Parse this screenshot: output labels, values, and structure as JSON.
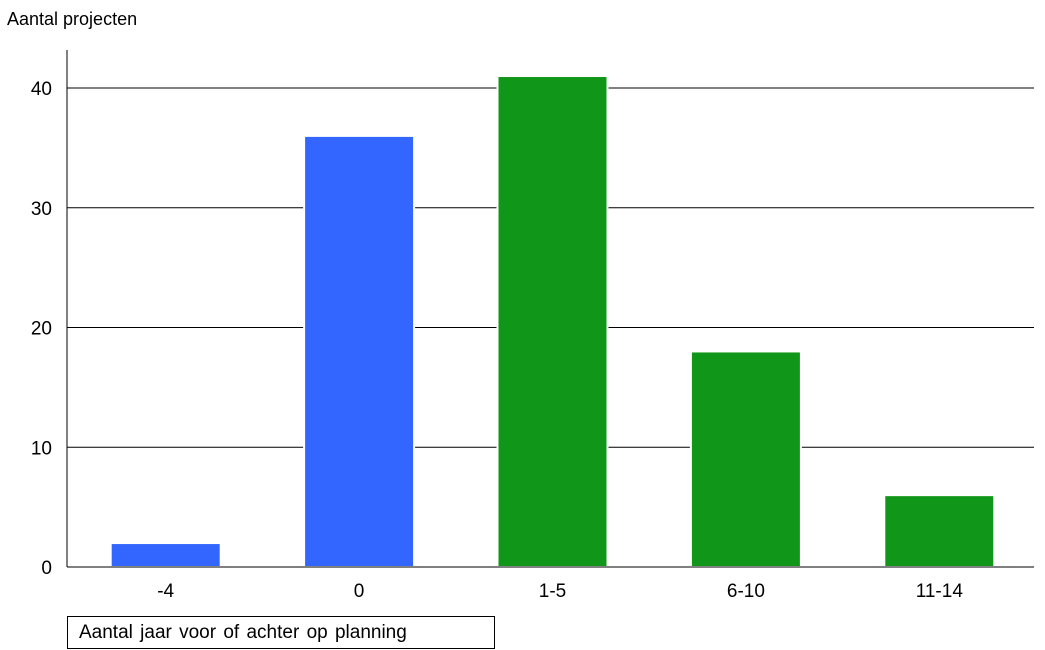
{
  "chart_data": {
    "type": "bar",
    "ylabel": "Aantal projecten",
    "xlabel": "Aantal jaar voor of achter op planning",
    "categories": [
      "-4",
      "0",
      "1-5",
      "6-10",
      "11-14"
    ],
    "values": [
      2,
      36,
      41,
      18,
      6
    ],
    "bar_colors": [
      "#3366ff",
      "#3366ff",
      "#109618",
      "#109618",
      "#109618"
    ],
    "ylim": [
      0,
      40
    ],
    "yticks": [
      0,
      10,
      20,
      30,
      40
    ],
    "grid": true,
    "legend": "none"
  }
}
